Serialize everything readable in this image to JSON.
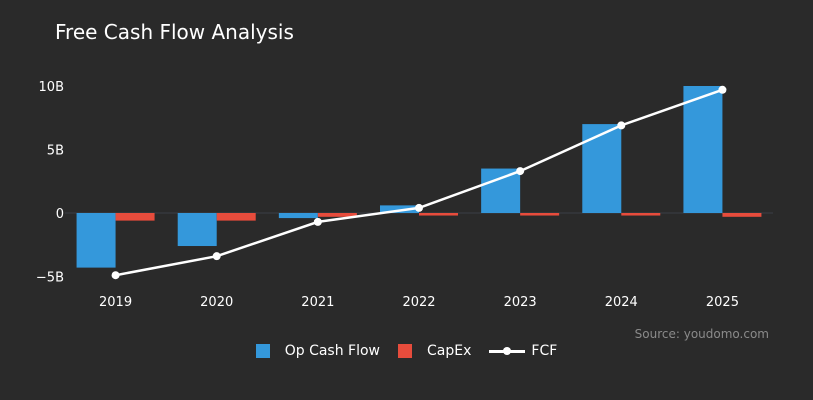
{
  "chart_data": {
    "type": "bar",
    "title": "Free Cash Flow Analysis",
    "categories": [
      "2019",
      "2020",
      "2021",
      "2022",
      "2023",
      "2024",
      "2025"
    ],
    "series": [
      {
        "name": "Op Cash Flow",
        "kind": "bar",
        "color": "#3498db",
        "values": [
          -4.3,
          -2.6,
          -0.4,
          0.6,
          3.5,
          7.0,
          10.0
        ]
      },
      {
        "name": "CapEx",
        "kind": "bar",
        "color": "#e74c3c",
        "values": [
          -0.6,
          -0.6,
          -0.3,
          -0.2,
          -0.2,
          -0.2,
          -0.3
        ]
      },
      {
        "name": "FCF",
        "kind": "line",
        "color": "#ffffff",
        "values": [
          -4.9,
          -3.4,
          -0.7,
          0.4,
          3.3,
          6.9,
          9.7
        ]
      }
    ],
    "ylim": [
      -5,
      10
    ],
    "yticks": [
      -5,
      0,
      5,
      10
    ],
    "ytick_labels": [
      "−5B",
      "0",
      "5B",
      "10B"
    ],
    "grid": false,
    "legend": "bottom-center",
    "source": "Source: youdomo.com"
  }
}
